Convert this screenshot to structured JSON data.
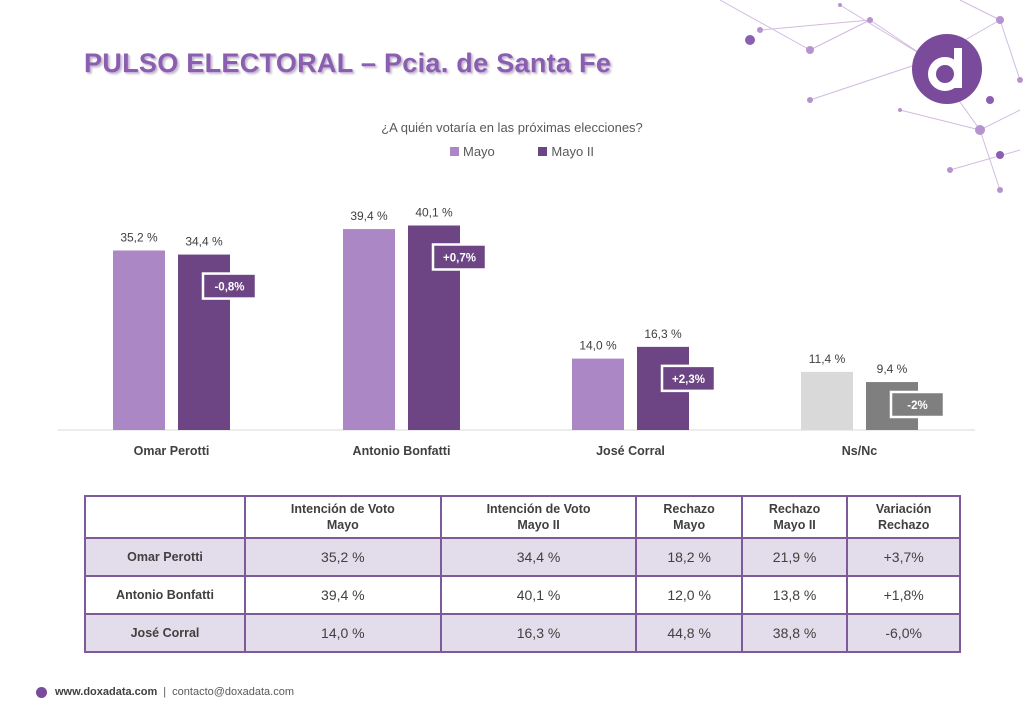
{
  "header": {
    "title": "PULSO ELECTORAL – Pcia. de Santa Fe"
  },
  "colors": {
    "mayo": "#ab87c5",
    "mayo_ii": "#6d4584",
    "nsnc_mayo": "#d9d9d9",
    "nsnc_mayo_ii": "#7f7f7f",
    "accent": "#7a4a9b"
  },
  "chart_data": {
    "type": "bar",
    "title": "¿A quién votaría en las próximas elecciones?",
    "categories": [
      "Omar Perotti",
      "Antonio Bonfatti",
      "José Corral",
      "Ns/Nc"
    ],
    "series": [
      {
        "name": "Mayo",
        "values": [
          35.2,
          39.4,
          14.0,
          11.4
        ],
        "labels": [
          "35,2 %",
          "39,4 %",
          "14,0 %",
          "11,4 %"
        ]
      },
      {
        "name": "Mayo II",
        "values": [
          34.4,
          40.1,
          16.3,
          9.4
        ],
        "labels": [
          "34,4 %",
          "40,1 %",
          "16,3 %",
          "9,4 %"
        ]
      }
    ],
    "variation_labels": [
      "-0,8%",
      "+0,7%",
      "+2,3%",
      "-2%"
    ],
    "legend": "top-center",
    "grid": false
  },
  "table": {
    "headers": [
      "",
      "Intención de Voto\nMayo",
      "Intención de Voto\nMayo II",
      "Rechazo\nMayo",
      "Rechazo\nMayo II",
      "Variación\nRechazo"
    ],
    "rows": [
      {
        "label": "Omar Perotti",
        "cells": [
          "35,2 %",
          "34,4 %",
          "18,2 %",
          "21,9 %",
          "+3,7%"
        ]
      },
      {
        "label": "Antonio Bonfatti",
        "cells": [
          "39,4 %",
          "40,1 %",
          "12,0 %",
          "13,8 %",
          "+1,8%"
        ]
      },
      {
        "label": "José Corral",
        "cells": [
          "14,0 %",
          "16,3 %",
          "44,8 %",
          "38,8 %",
          "-6,0%"
        ]
      }
    ]
  },
  "footer": {
    "site": "www.doxadata.com",
    "separator": "|",
    "contact": "contacto@doxadata.com"
  }
}
